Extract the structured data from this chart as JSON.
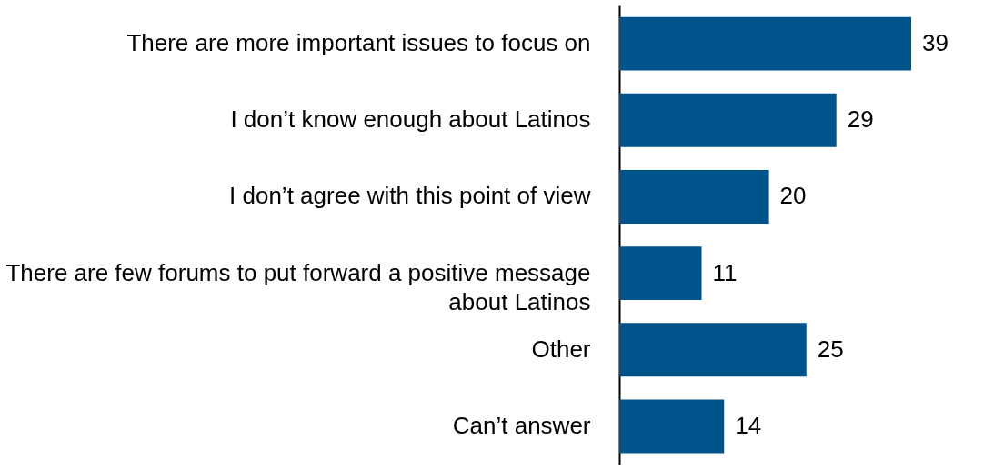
{
  "chart_data": {
    "type": "bar",
    "orientation": "horizontal",
    "categories": [
      "There are more important issues to focus on",
      "I don’t know enough about Latinos",
      "I don’t agree  with this point of view",
      "There are few forums to put forward a positive message about Latinos",
      "Other",
      "Can’t answer"
    ],
    "values": [
      39,
      29,
      20,
      11,
      25,
      14
    ],
    "color": "#00538a",
    "data_labels": true
  }
}
